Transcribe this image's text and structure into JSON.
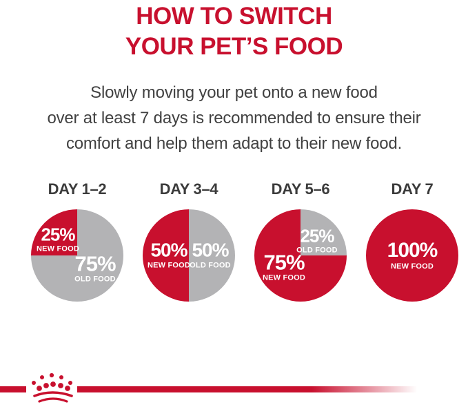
{
  "title": {
    "line1": "HOW TO SWITCH",
    "line2": "YOUR PET’S FOOD"
  },
  "subtitle": {
    "line1": "Slowly moving your pet onto a new food",
    "line2": "over at least 7 days is recommended to ensure their",
    "line3": "comfort and help them adapt to their new food."
  },
  "colors": {
    "brand_red": "#C8102E",
    "pie_gray": "#B3B3B5",
    "heading_gray": "#3B3B3B",
    "body_gray": "#414141"
  },
  "brand": {
    "logo_icon": "royal-canin-crown"
  },
  "chart_data": [
    {
      "type": "pie",
      "title": "DAY 1–2",
      "slices": [
        {
          "label": "NEW FOOD",
          "pct_label": "25%",
          "value": 25,
          "color": "#C8102E"
        },
        {
          "label": "OLD FOOD",
          "pct_label": "75%",
          "value": 75,
          "color": "#B3B3B5"
        }
      ]
    },
    {
      "type": "pie",
      "title": "DAY 3–4",
      "slices": [
        {
          "label": "NEW FOOD",
          "pct_label": "50%",
          "value": 50,
          "color": "#C8102E"
        },
        {
          "label": "OLD FOOD",
          "pct_label": "50%",
          "value": 50,
          "color": "#B3B3B5"
        }
      ]
    },
    {
      "type": "pie",
      "title": "DAY 5–6",
      "slices": [
        {
          "label": "NEW FOOD",
          "pct_label": "75%",
          "value": 75,
          "color": "#C8102E"
        },
        {
          "label": "OLD FOOD",
          "pct_label": "25%",
          "value": 25,
          "color": "#B3B3B5"
        }
      ]
    },
    {
      "type": "pie",
      "title": "DAY 7",
      "slices": [
        {
          "label": "NEW FOOD",
          "pct_label": "100%",
          "value": 100,
          "color": "#C8102E"
        }
      ]
    }
  ]
}
